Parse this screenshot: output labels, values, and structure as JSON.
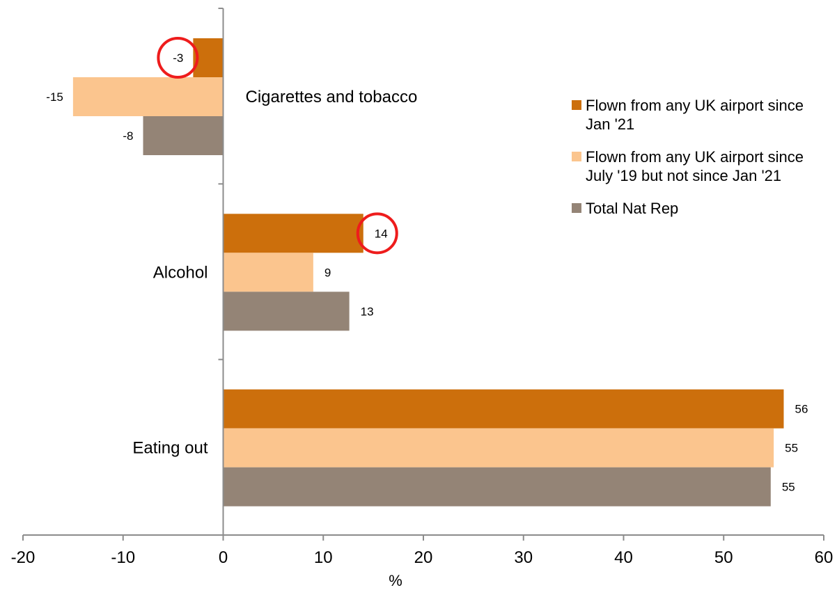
{
  "chart_data": {
    "type": "bar",
    "orientation": "horizontal",
    "categories": [
      "Cigarettes and tobacco",
      "Alcohol",
      "Eating out"
    ],
    "series": [
      {
        "name": "Flown from any UK airport since Jan '21",
        "legend_lines": [
          "Flown from any UK airport since",
          "Jan '21"
        ],
        "color": "#cc6f0c",
        "values": [
          -3,
          14,
          56
        ],
        "labels": [
          "-3",
          "14",
          "56"
        ]
      },
      {
        "name": "Flown from any UK airport since July '19 but not since Jan '21",
        "legend_lines": [
          "Flown from any UK airport since",
          "July '19 but not since Jan '21"
        ],
        "color": "#fbc58e",
        "values": [
          -15,
          9,
          55
        ],
        "labels": [
          "-15",
          "9",
          "55"
        ]
      },
      {
        "name": "Total Nat Rep",
        "legend_lines": [
          "Total Nat Rep"
        ],
        "color": "#948476",
        "values": [
          -8,
          12.6,
          54.7
        ],
        "labels": [
          "-8",
          "13",
          "55"
        ]
      }
    ],
    "xlabel": "%",
    "xlim": [
      -20,
      60
    ],
    "xticks": [
      -20,
      -10,
      0,
      10,
      20,
      30,
      40,
      50,
      60
    ],
    "grid": false,
    "legend_position": "right",
    "annotations": [
      {
        "type": "circle",
        "color": "#ee1c1c",
        "series": 0,
        "category": 0
      },
      {
        "type": "circle",
        "color": "#ee1c1c",
        "series": 0,
        "category": 1
      }
    ]
  }
}
